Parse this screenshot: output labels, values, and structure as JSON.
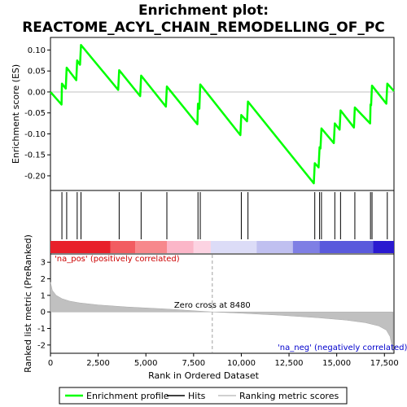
{
  "chart_data": {
    "type": "line",
    "title_line1": "Enrichment plot:",
    "title_line2": "REACTOME_ACYL_CHAIN_REMODELLING_OF_PC",
    "top_panel": {
      "ylabel": "Enrichment score (ES)",
      "ylim": [
        -0.235,
        0.13
      ],
      "yticks": [
        0.1,
        0.05,
        0.0,
        -0.05,
        -0.1,
        -0.15,
        -0.2
      ],
      "ytick_labels": [
        "0.10",
        "0.05",
        "0.00",
        "-0.05",
        "-0.10",
        "-0.15",
        "-0.20"
      ],
      "series_name": "Enrichment profile",
      "series_color": "#00ff00",
      "points": [
        [
          0,
          0.0
        ],
        [
          580,
          -0.03
        ],
        [
          600,
          0.02
        ],
        [
          800,
          0.008
        ],
        [
          850,
          0.058
        ],
        [
          1350,
          0.028
        ],
        [
          1400,
          0.075
        ],
        [
          1550,
          0.065
        ],
        [
          1600,
          0.112
        ],
        [
          3550,
          0.005
        ],
        [
          3600,
          0.052
        ],
        [
          4700,
          -0.01
        ],
        [
          4750,
          0.039
        ],
        [
          6050,
          -0.035
        ],
        [
          6100,
          0.013
        ],
        [
          7700,
          -0.077
        ],
        [
          7730,
          -0.028
        ],
        [
          7800,
          -0.04
        ],
        [
          7850,
          0.018
        ],
        [
          9950,
          -0.103
        ],
        [
          10000,
          -0.055
        ],
        [
          10300,
          -0.07
        ],
        [
          10350,
          -0.023
        ],
        [
          13800,
          -0.218
        ],
        [
          13850,
          -0.17
        ],
        [
          14050,
          -0.18
        ],
        [
          14100,
          -0.132
        ],
        [
          14150,
          -0.135
        ],
        [
          14200,
          -0.087
        ],
        [
          14850,
          -0.122
        ],
        [
          14900,
          -0.075
        ],
        [
          15150,
          -0.09
        ],
        [
          15200,
          -0.044
        ],
        [
          15900,
          -0.085
        ],
        [
          15950,
          -0.037
        ],
        [
          16750,
          -0.075
        ],
        [
          16770,
          -0.03
        ],
        [
          16800,
          -0.032
        ],
        [
          16850,
          0.015
        ],
        [
          17600,
          -0.028
        ],
        [
          17650,
          0.02
        ],
        [
          18000,
          0.002
        ]
      ]
    },
    "hits_panel": {
      "name": "Hits",
      "hit_ranks": [
        600,
        850,
        1400,
        1600,
        3600,
        4750,
        6100,
        7730,
        7850,
        10000,
        10350,
        13850,
        14100,
        14200,
        14900,
        15200,
        15950,
        16770,
        16850,
        17650
      ]
    },
    "bottom_panel": {
      "xlabel": "Rank in Ordered Dataset",
      "ylabel": "Ranked list metric (PreRanked)",
      "xlim": [
        0,
        18000
      ],
      "xticks": [
        0,
        2500,
        5000,
        7500,
        10000,
        12500,
        15000,
        17500
      ],
      "xtick_labels": [
        "0",
        "2,500",
        "5,000",
        "7,500",
        "10,000",
        "12,500",
        "15,000",
        "17,500"
      ],
      "ylim": [
        -2.5,
        3.5
      ],
      "yticks": [
        3,
        2,
        1,
        0,
        -1,
        -2
      ],
      "ytick_labels": [
        "3",
        "2",
        "1",
        "0",
        "-1",
        "-2"
      ],
      "series_name": "Ranking metric scores",
      "metric_curve": [
        [
          0,
          1.8
        ],
        [
          100,
          1.3
        ],
        [
          300,
          1.0
        ],
        [
          600,
          0.8
        ],
        [
          1000,
          0.65
        ],
        [
          1500,
          0.55
        ],
        [
          2500,
          0.42
        ],
        [
          4000,
          0.3
        ],
        [
          6000,
          0.18
        ],
        [
          8480,
          0.0
        ],
        [
          10000,
          -0.08
        ],
        [
          12000,
          -0.2
        ],
        [
          14000,
          -0.35
        ],
        [
          15500,
          -0.5
        ],
        [
          16500,
          -0.65
        ],
        [
          17200,
          -0.85
        ],
        [
          17600,
          -1.1
        ],
        [
          17800,
          -1.5
        ],
        [
          17950,
          -2.4
        ]
      ],
      "zero_cross_rank": 8480,
      "zero_cross_label": "Zero cross at 8480",
      "pos_label": "'na_pos' (positively correlated)",
      "neg_label": "'na_neg' (negatively correlated)",
      "pos_color": "#cc0000",
      "neg_color": "#0000cc"
    },
    "colorbar_segments": [
      {
        "start": 0,
        "end": 3150,
        "color": "#e8202a"
      },
      {
        "start": 3150,
        "end": 4450,
        "color": "#f25c61"
      },
      {
        "start": 4450,
        "end": 6100,
        "color": "#f7888c"
      },
      {
        "start": 6100,
        "end": 7500,
        "color": "#fbb6c8"
      },
      {
        "start": 7500,
        "end": 8400,
        "color": "#fcd3e2"
      },
      {
        "start": 8400,
        "end": 10800,
        "color": "#dcdcf7"
      },
      {
        "start": 10800,
        "end": 12700,
        "color": "#c0c0f0"
      },
      {
        "start": 12700,
        "end": 14100,
        "color": "#7f7fe4"
      },
      {
        "start": 14100,
        "end": 16900,
        "color": "#5a5adc"
      },
      {
        "start": 16900,
        "end": 18000,
        "color": "#2a1ad0"
      }
    ],
    "legend": [
      {
        "label": "Enrichment profile",
        "kind": "line",
        "color": "#00ff00"
      },
      {
        "label": "Hits",
        "kind": "line",
        "color": "#000000"
      },
      {
        "label": "Ranking metric scores",
        "kind": "line",
        "color": "#c0c0c0"
      }
    ]
  }
}
